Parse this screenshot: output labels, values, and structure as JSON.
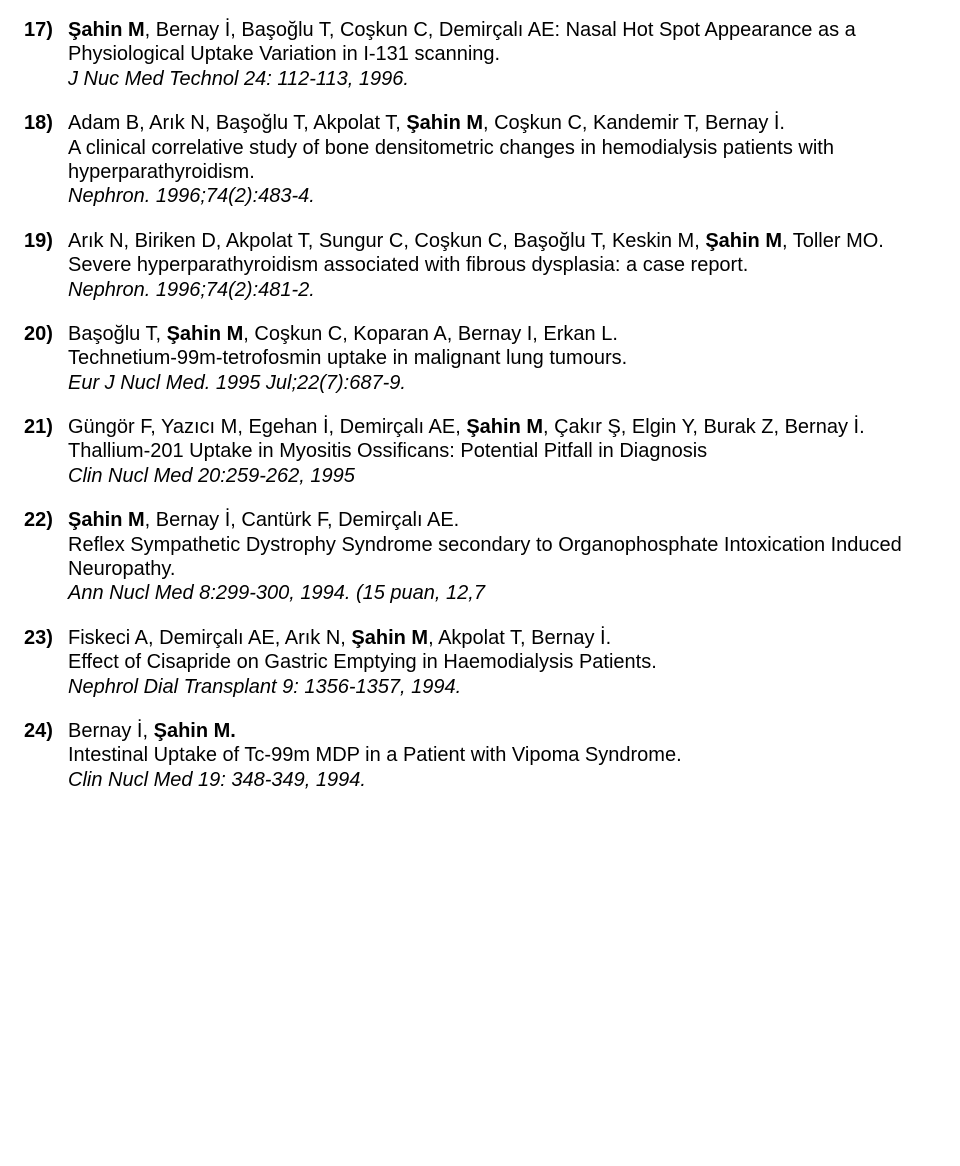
{
  "refs": [
    {
      "num": "17)",
      "authors_html": "<b>Şahin M</b>, Bernay İ, Başoğlu T, Coşkun C, Demirçalı AE: Nasal Hot Spot Appearance as a Physiological Uptake Variation in I-131 scanning.",
      "title_html": "",
      "journal_html": "J Nuc Med Technol  24: 112-113, 1996."
    },
    {
      "num": "18)",
      "authors_html": "Adam B, Arık N, Başoğlu T, Akpolat T, <b>Şahin M</b>, Coşkun C, Kandemir T, Bernay İ.",
      "title_html": "A clinical correlative study of bone densitometric changes in hemodialysis patients with hyperparathyroidism.",
      "journal_html": "Nephron. 1996;74(2):483-4."
    },
    {
      "num": "19)",
      "authors_html": "Arık N, Biriken D, Akpolat T, Sungur C, Coşkun C, Başoğlu T, Keskin M, <b>Şahin M</b>, Toller MO.",
      "title_html": "Severe hyperparathyroidism associated with fibrous dysplasia: a case report.",
      "journal_html": "Nephron. 1996;74(2):481-2."
    },
    {
      "num": "20)",
      "authors_html": "Başoğlu T, <b>Şahin M</b>, Coşkun C, Koparan A, Bernay I, Erkan L.",
      "title_html": "Technetium-99m-tetrofosmin uptake in malignant lung tumours.",
      "journal_html": "Eur J Nucl Med. 1995 Jul;22(7):687-9."
    },
    {
      "num": "21)",
      "authors_html": "Güngör F, Yazıcı M, Egehan İ, Demirçalı AE, <b>Şahin M</b>, Çakır Ş, Elgin Y, Burak Z, Bernay İ.",
      "title_html": "Thallium-201 Uptake in Myositis Ossificans: Potential Pitfall in Diagnosis",
      "journal_html": "Clin Nucl Med 20:259-262, 1995"
    },
    {
      "num": "22)",
      "authors_html": "<b>Şahin M</b>, Bernay İ, Cantürk F, Demirçalı AE.",
      "title_html": "Reflex Sympathetic Dystrophy Syndrome secondary to Organophosphate Intoxication Induced Neuropathy.",
      "journal_html": "Ann Nucl Med 8:299-300, 1994.  (15 puan, 12,7"
    },
    {
      "num": "23)",
      "authors_html": "Fiskeci A, Demirçalı AE, Arık N, <b>Şahin M</b>, Akpolat T, Bernay İ.",
      "title_html": "Effect of Cisapride on Gastric Emptying in Haemodialysis Patients.",
      "journal_html": "Nephrol Dial Transplant 9: 1356-1357, 1994."
    },
    {
      "num": "24)",
      "authors_html": "Bernay İ, <b>Şahin M.</b>",
      "title_html": "Intestinal Uptake of Tc-99m MDP in a Patient with Vipoma Syndrome.",
      "journal_html": "Clin Nucl Med 19: 348-349, 1994."
    }
  ]
}
